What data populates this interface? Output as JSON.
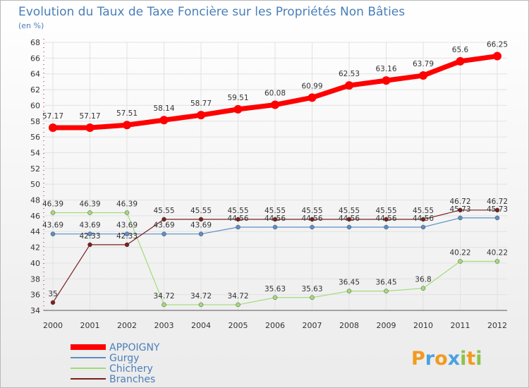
{
  "chart_data": {
    "type": "line",
    "title": "Evolution du Taux de Taxe Foncière sur les Propriétés Non Bâties",
    "subtitle": "(en %)",
    "categories": [
      "2000",
      "2001",
      "2002",
      "2003",
      "2004",
      "2005",
      "2006",
      "2007",
      "2008",
      "2009",
      "2010",
      "2011",
      "2012"
    ],
    "ylim": [
      34,
      68
    ],
    "ytick_step": 2,
    "grid": true,
    "series": [
      {
        "name": "APPOIGNY",
        "color": "#ff0000",
        "values": [
          57.17,
          57.17,
          57.51,
          58.14,
          58.77,
          59.51,
          60.08,
          60.99,
          62.53,
          63.16,
          63.79,
          65.6,
          66.25
        ],
        "labels": [
          "57.17",
          "57.17",
          "57.51",
          "58.14",
          "58.77",
          "59.51",
          "60.08",
          "60.99",
          "62.53",
          "63.16",
          "63.79",
          "65.6",
          "66.25"
        ]
      },
      {
        "name": "Gurgy",
        "color": "#5b8fc4",
        "values": [
          43.69,
          43.69,
          43.69,
          43.69,
          43.69,
          44.56,
          44.56,
          44.56,
          44.56,
          44.56,
          44.56,
          45.73,
          45.73
        ],
        "labels": [
          "43.69",
          "43.69",
          "43.69",
          "43.69",
          "43.69",
          "44.56",
          "44.56",
          "44.56",
          "44.56",
          "44.56",
          "44.56",
          "45.73",
          "45.73"
        ]
      },
      {
        "name": "Chichery",
        "color": "#a3db7a",
        "values": [
          46.39,
          46.39,
          46.39,
          34.72,
          34.72,
          34.72,
          35.63,
          35.63,
          36.45,
          36.45,
          36.8,
          40.22,
          40.22
        ],
        "labels": [
          "46.39",
          "46.39",
          "46.39",
          "34.72",
          "34.72",
          "34.72",
          "35.63",
          "35.63",
          "36.45",
          "36.45",
          "36.8",
          "40.22",
          "40.22"
        ]
      },
      {
        "name": "Branches",
        "color": "#7a1f1f",
        "values": [
          35,
          42.33,
          42.33,
          45.55,
          45.55,
          45.55,
          45.55,
          45.55,
          45.55,
          45.55,
          45.55,
          46.72,
          46.72
        ],
        "labels": [
          "35",
          "42.33",
          "42.33",
          "45.55",
          "45.55",
          "45.55",
          "45.55",
          "45.55",
          "45.55",
          "45.55",
          "45.55",
          "46.72",
          "46.72"
        ]
      }
    ]
  },
  "brand": "Proxiti"
}
